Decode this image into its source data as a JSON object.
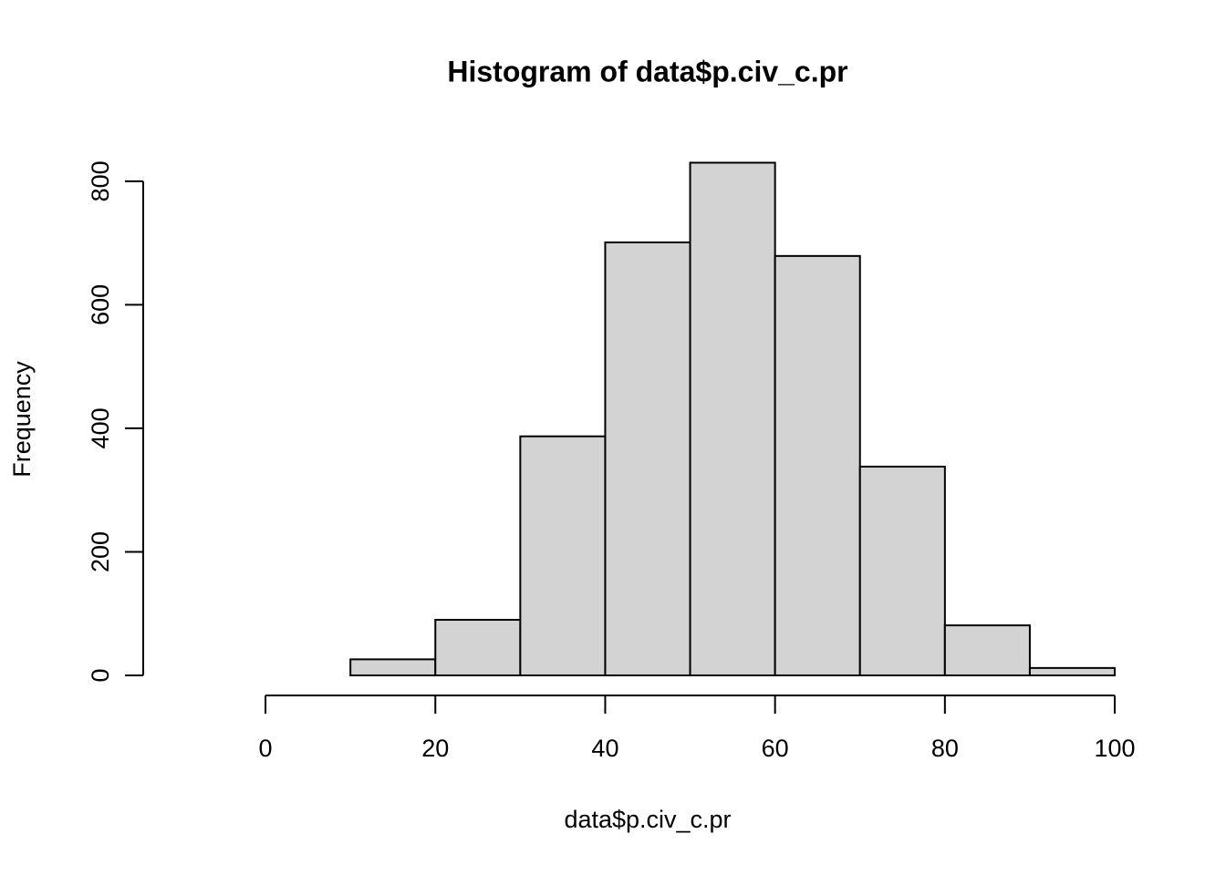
{
  "chart_data": {
    "type": "histogram",
    "title": "Histogram of data$p.civ_c.pr",
    "x_label": "data$p.civ_c.pr",
    "y_label": "Frequency",
    "bins": [
      -10,
      0,
      10,
      20,
      30,
      40,
      50,
      60,
      70,
      80,
      90,
      100
    ],
    "values": [
      0,
      0,
      26,
      90,
      387,
      701,
      830,
      679,
      338,
      81,
      12
    ],
    "color": "#d3d3d3",
    "xlim": [
      -14.4,
      104.4
    ],
    "ylim": [
      -33.2,
      863.2
    ],
    "xticks": [
      0,
      20,
      40,
      60,
      80,
      100
    ],
    "yticks": [
      0,
      200,
      400,
      600,
      800
    ],
    "grid": false
  }
}
